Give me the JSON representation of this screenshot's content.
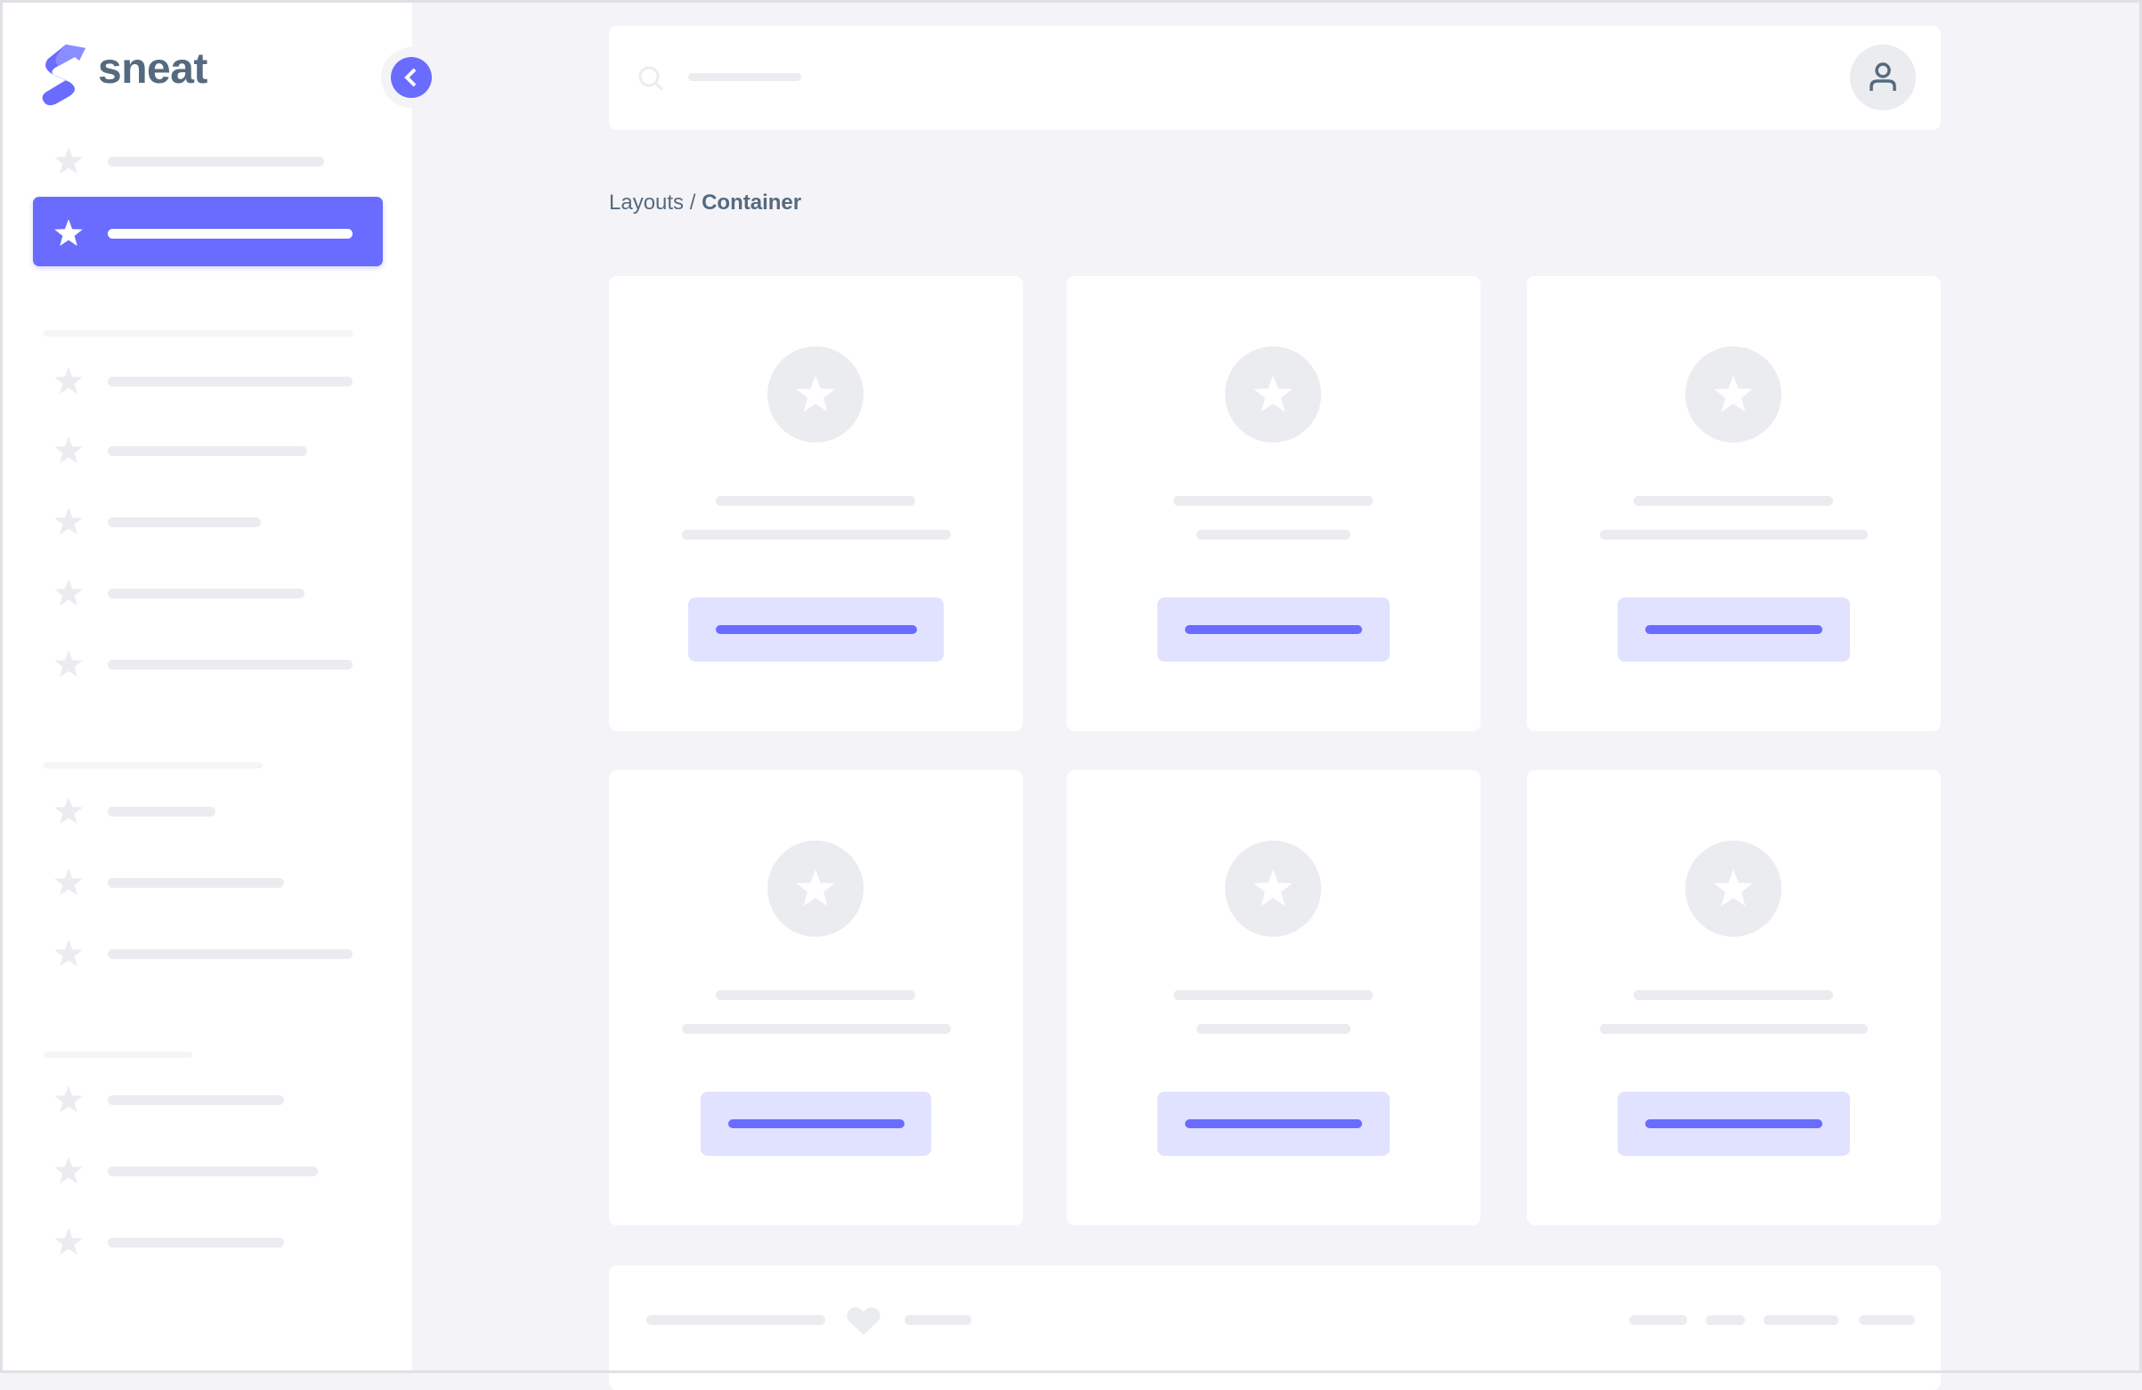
{
  "brand": {
    "name": "sneat",
    "color": "#696cff",
    "text_color": "#566a7f"
  },
  "breadcrumb": {
    "parent": "Layouts",
    "separator": " / ",
    "current": "Container"
  },
  "icons": {
    "collapse": "chevron-left-icon",
    "search": "search-icon",
    "avatar": "user-icon",
    "menu": "star-icon",
    "footer": "heart-icon"
  },
  "colors": {
    "primary": "#696cff",
    "primary_light": "#e1e2ff",
    "placeholder": "#ebecf0",
    "background": "#f4f4f8"
  }
}
